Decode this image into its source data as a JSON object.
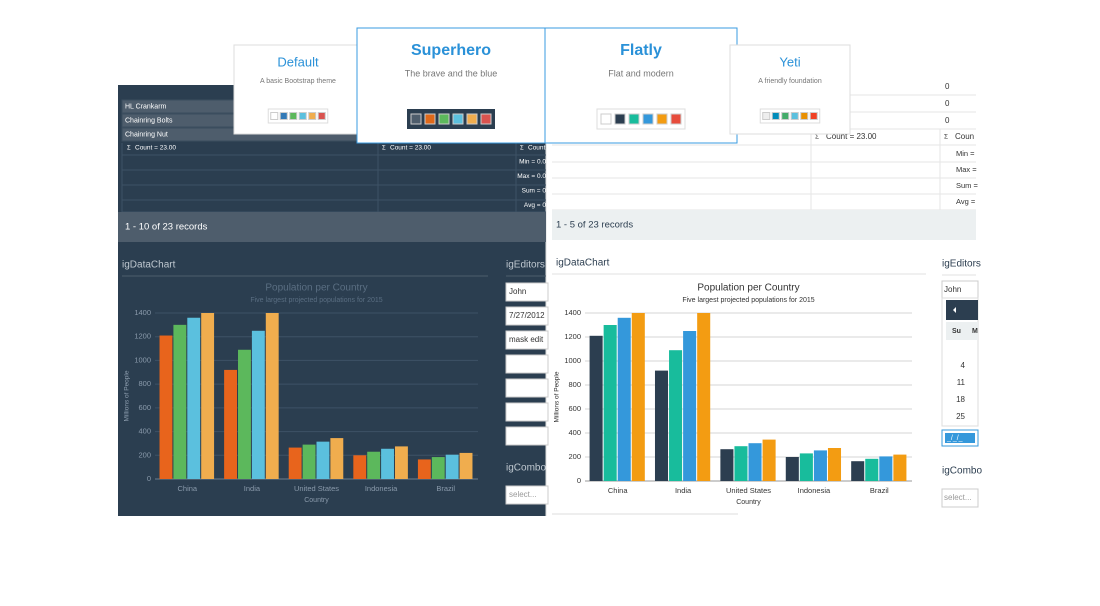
{
  "themes": [
    {
      "title": "Default",
      "description": "A basic Bootstrap theme",
      "swatches": [
        "#ffffff",
        "#337ab7",
        "#5cb85c",
        "#5bc0de",
        "#f0ad4e",
        "#d9534f"
      ]
    },
    {
      "title": "Superhero",
      "description": "The brave and the blue",
      "swatches": [
        "#4e5d6c",
        "#df691a",
        "#5cb85c",
        "#5bc0de",
        "#f0ad4e",
        "#d9534f"
      ]
    },
    {
      "title": "Flatly",
      "description": "Flat and modern",
      "swatches": [
        "#ffffff",
        "#2c3e50",
        "#18bc9c",
        "#3498db",
        "#f39c12",
        "#e74c3c"
      ]
    },
    {
      "title": "Yeti",
      "description": "A friendly foundation",
      "swatches": [
        "#eeeeee",
        "#008cba",
        "#43ac6a",
        "#5bc0de",
        "#e99002",
        "#f04124"
      ]
    }
  ],
  "panels": [
    {
      "rows": [
        "HL Crankarm",
        "Chainring Bolts",
        "Chainring Nut"
      ],
      "sigma": "Σ",
      "summary": [
        "Count = 23.00",
        "Count = 23.00",
        "Count = 23.00"
      ],
      "stats": [
        "Min = 0.0",
        "Max = 0.0",
        "Sum = 0",
        "Avg = 0"
      ],
      "records": "1 - 10 of 23 records",
      "chart_header": "igDataChart",
      "editors_header": "igEditors",
      "editors": [
        "John",
        "7/27/2012",
        "mask edit"
      ],
      "combo_header": "igCombo",
      "combo": "select..."
    },
    {
      "cells": [
        "0",
        "0",
        "0"
      ],
      "sigma": "Σ",
      "summary": [
        "Count = 23.00",
        "Coun"
      ],
      "stats": [
        "Min =",
        "Max =",
        "Sum =",
        "Avg ="
      ],
      "records": "1 - 5 of 23 records",
      "chart_header": "igDataChart",
      "editors_header": "igEditors",
      "editors": [
        "John"
      ],
      "calendar": [
        "Su",
        "M",
        "4",
        "11",
        "18",
        "25"
      ],
      "mask": "_/_/_",
      "combo_header": "igCombo",
      "combo": "select..."
    }
  ],
  "chart_data": [
    {
      "type": "bar",
      "title": "Population per Country",
      "subtitle": "Five largest projected populations for 2015",
      "xlabel": "Country",
      "ylabel": "Millions of People",
      "categories": [
        "China",
        "India",
        "United States",
        "Indonesia",
        "Brazil"
      ],
      "series": [
        {
          "color": "#e8641c",
          "values": [
            1210,
            920,
            265,
            200,
            165
          ]
        },
        {
          "color": "#5cb85c",
          "values": [
            1300,
            1090,
            290,
            230,
            185
          ]
        },
        {
          "color": "#5bc0de",
          "values": [
            1360,
            1250,
            315,
            255,
            205
          ]
        },
        {
          "color": "#f0ad4e",
          "values": [
            1400,
            1400,
            345,
            275,
            220
          ]
        }
      ],
      "ylim": [
        0,
        1400
      ],
      "yticks": [
        0,
        200,
        400,
        600,
        800,
        1000,
        1200,
        1400
      ],
      "grid": true
    },
    {
      "type": "bar",
      "title": "Population per Country",
      "subtitle": "Five largest projected populations for 2015",
      "xlabel": "Country",
      "ylabel": "Millions of People",
      "categories": [
        "China",
        "India",
        "United States",
        "Indonesia",
        "Brazil"
      ],
      "series": [
        {
          "color": "#2c3e50",
          "values": [
            1210,
            920,
            265,
            200,
            165
          ]
        },
        {
          "color": "#18bc9c",
          "values": [
            1300,
            1090,
            290,
            230,
            185
          ]
        },
        {
          "color": "#3498db",
          "values": [
            1360,
            1250,
            315,
            255,
            205
          ]
        },
        {
          "color": "#f39c12",
          "values": [
            1400,
            1400,
            345,
            275,
            220
          ]
        }
      ],
      "ylim": [
        0,
        1400
      ],
      "yticks": [
        0,
        200,
        400,
        600,
        800,
        1000,
        1200,
        1400
      ],
      "grid": true
    }
  ]
}
